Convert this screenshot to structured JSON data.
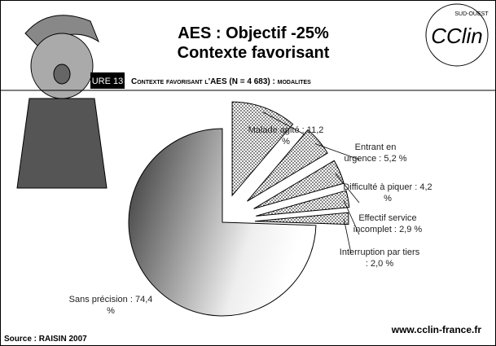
{
  "header": {
    "title": "AES : Objectif -25%",
    "subtitle": "Contexte favorisant",
    "logo": "CClin",
    "logo_region": "SUD-OUEST"
  },
  "figure_bar": {
    "number": "URE 13",
    "caption": "Contexte favorisant l'AES (N = 4 683) : modalites"
  },
  "chart_data": {
    "type": "pie",
    "categories": [
      "Malade agité :",
      "Entrant en urgence :",
      "Difficulté à piquer :",
      "Effectif service incomplet :",
      "Interruption par tiers :",
      "Sans précision :"
    ],
    "values": [
      11.2,
      5.2,
      4.2,
      2.9,
      2.0,
      74.4
    ],
    "value_labels": [
      "11,2 %",
      "5,2 %",
      "4,2 %",
      "2,9 %",
      "2,0 %",
      "74,4 %"
    ]
  },
  "footer": {
    "source": "Source : RAISIN 2007",
    "url": "www.cclin-france.fr"
  }
}
